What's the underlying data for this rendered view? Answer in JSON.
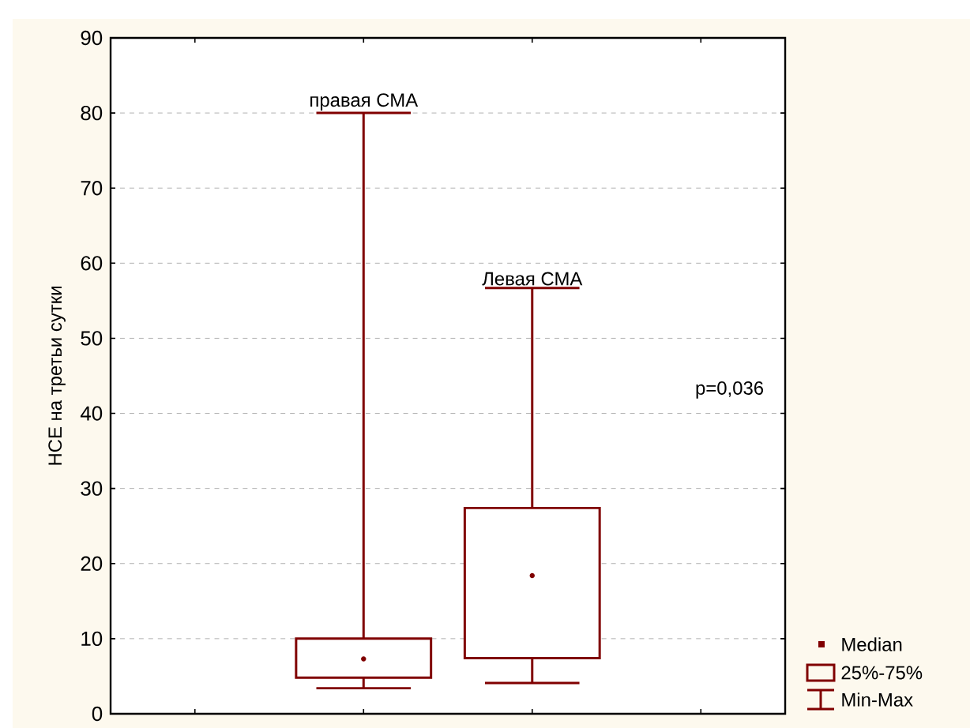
{
  "chart_data": {
    "type": "box",
    "ylabel": "НСЕ на третьи сутки",
    "categories": [
      "правая СМА",
      "Левая СМА"
    ],
    "boxes": [
      {
        "low": 3.4,
        "q1": 4.8,
        "median": 7.3,
        "q3": 10,
        "high": 80
      },
      {
        "low": 4.1,
        "q1": 7.4,
        "median": 18.4,
        "q3": 27.4,
        "high": 56.7
      }
    ],
    "color": "#800000",
    "ylim": [
      0,
      90
    ],
    "yticks": [
      0,
      10,
      20,
      30,
      40,
      50,
      60,
      70,
      80,
      90
    ],
    "grid": "y",
    "annotations": [
      "p=0,036",
      "Median",
      "25%-75%",
      "Min-Max"
    ]
  }
}
